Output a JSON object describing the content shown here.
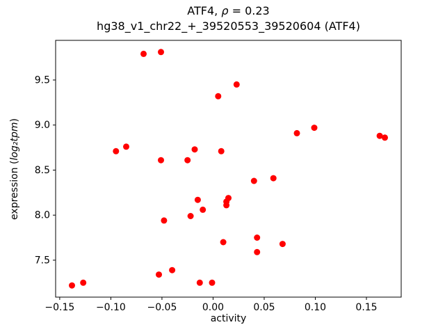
{
  "chart_data": {
    "type": "scatter",
    "title": {
      "prefix": "ATF4, ",
      "math": "ρ",
      "suffix": " = 0.23"
    },
    "subtitle": "hg38_v1_chr22_+_39520553_39520604 (ATF4)",
    "xlabel": "activity",
    "ylabel": {
      "prefix": "expression (",
      "math": "log₂tpm",
      "suffix": ")"
    },
    "marker_color": "#ff0000",
    "marker_radius": 4.5,
    "grid": false,
    "legend": "none",
    "xlim": [
      -0.154,
      0.184
    ],
    "ylim": [
      7.09,
      9.94
    ],
    "xticks": [
      -0.15,
      -0.1,
      -0.05,
      0.0,
      0.05,
      0.1,
      0.15
    ],
    "xtick_labels": [
      "−0.15",
      "−0.10",
      "−0.05",
      "0.00",
      "0.05",
      "0.10",
      "0.15"
    ],
    "yticks": [
      7.5,
      8.0,
      8.5,
      9.0,
      9.5
    ],
    "ytick_labels": [
      "7.5",
      "8.0",
      "8.5",
      "9.0",
      "9.5"
    ],
    "points": [
      [
        -0.138,
        7.22
      ],
      [
        -0.127,
        7.25
      ],
      [
        -0.095,
        8.71
      ],
      [
        -0.085,
        8.76
      ],
      [
        -0.068,
        9.79
      ],
      [
        -0.051,
        9.81
      ],
      [
        -0.051,
        8.61
      ],
      [
        -0.048,
        7.94
      ],
      [
        -0.053,
        7.34
      ],
      [
        -0.04,
        7.39
      ],
      [
        -0.025,
        8.61
      ],
      [
        -0.018,
        8.73
      ],
      [
        -0.022,
        7.99
      ],
      [
        -0.015,
        8.17
      ],
      [
        -0.01,
        8.06
      ],
      [
        -0.013,
        7.25
      ],
      [
        -0.001,
        7.25
      ],
      [
        0.005,
        9.32
      ],
      [
        0.008,
        8.71
      ],
      [
        0.013,
        8.15
      ],
      [
        0.015,
        8.19
      ],
      [
        0.013,
        8.11
      ],
      [
        0.01,
        7.7
      ],
      [
        0.023,
        9.45
      ],
      [
        0.04,
        8.38
      ],
      [
        0.043,
        7.75
      ],
      [
        0.043,
        7.59
      ],
      [
        0.059,
        8.41
      ],
      [
        0.068,
        7.68
      ],
      [
        0.082,
        8.91
      ],
      [
        0.099,
        8.97
      ],
      [
        0.163,
        8.88
      ],
      [
        0.168,
        8.86
      ]
    ]
  }
}
